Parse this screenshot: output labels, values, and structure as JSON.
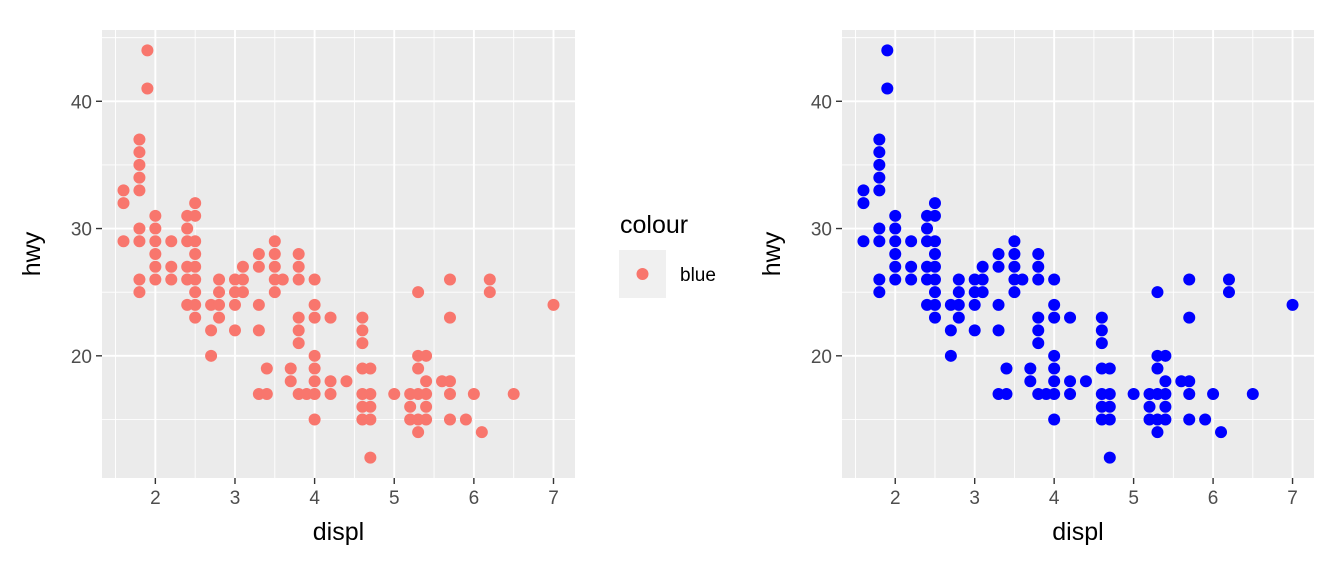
{
  "chart_data": [
    {
      "type": "scatter",
      "xlabel": "displ",
      "ylabel": "hwy",
      "xlim": [
        1.33,
        7.27
      ],
      "ylim": [
        10.4,
        45.6
      ],
      "x_ticks": [
        2,
        3,
        4,
        5,
        6,
        7
      ],
      "y_ticks": [
        20,
        30,
        40
      ],
      "grid": true,
      "point_color": "#F8766D",
      "legend": {
        "title": "colour",
        "entries": [
          "blue"
        ],
        "placement": "right"
      },
      "points": [
        [
          1.6,
          33
        ],
        [
          1.6,
          32
        ],
        [
          1.6,
          29
        ],
        [
          1.8,
          37
        ],
        [
          1.8,
          36
        ],
        [
          1.8,
          35
        ],
        [
          1.8,
          34
        ],
        [
          1.8,
          33
        ],
        [
          1.8,
          30
        ],
        [
          1.8,
          29
        ],
        [
          1.8,
          26
        ],
        [
          1.8,
          25
        ],
        [
          1.9,
          44
        ],
        [
          1.9,
          41
        ],
        [
          2.0,
          31
        ],
        [
          2.0,
          30
        ],
        [
          2.0,
          29
        ],
        [
          2.0,
          28
        ],
        [
          2.0,
          27
        ],
        [
          2.0,
          26
        ],
        [
          2.2,
          29
        ],
        [
          2.2,
          27
        ],
        [
          2.2,
          26
        ],
        [
          2.4,
          31
        ],
        [
          2.4,
          30
        ],
        [
          2.4,
          29
        ],
        [
          2.4,
          27
        ],
        [
          2.4,
          26
        ],
        [
          2.4,
          24
        ],
        [
          2.5,
          32
        ],
        [
          2.5,
          31
        ],
        [
          2.5,
          29
        ],
        [
          2.5,
          28
        ],
        [
          2.5,
          27
        ],
        [
          2.5,
          26
        ],
        [
          2.5,
          25
        ],
        [
          2.5,
          24
        ],
        [
          2.5,
          23
        ],
        [
          2.7,
          24
        ],
        [
          2.7,
          22
        ],
        [
          2.7,
          20
        ],
        [
          2.8,
          26
        ],
        [
          2.8,
          25
        ],
        [
          2.8,
          24
        ],
        [
          2.8,
          23
        ],
        [
          3.0,
          26
        ],
        [
          3.0,
          25
        ],
        [
          3.0,
          24
        ],
        [
          3.0,
          22
        ],
        [
          3.1,
          27
        ],
        [
          3.1,
          26
        ],
        [
          3.1,
          25
        ],
        [
          3.3,
          28
        ],
        [
          3.3,
          27
        ],
        [
          3.3,
          24
        ],
        [
          3.3,
          22
        ],
        [
          3.3,
          17
        ],
        [
          3.4,
          19
        ],
        [
          3.4,
          17
        ],
        [
          3.5,
          29
        ],
        [
          3.5,
          28
        ],
        [
          3.5,
          27
        ],
        [
          3.5,
          26
        ],
        [
          3.5,
          25
        ],
        [
          3.6,
          26
        ],
        [
          3.7,
          19
        ],
        [
          3.7,
          18
        ],
        [
          3.8,
          28
        ],
        [
          3.8,
          27
        ],
        [
          3.8,
          26
        ],
        [
          3.8,
          23
        ],
        [
          3.8,
          22
        ],
        [
          3.8,
          21
        ],
        [
          3.8,
          17
        ],
        [
          3.9,
          17
        ],
        [
          4.0,
          26
        ],
        [
          4.0,
          24
        ],
        [
          4.0,
          23
        ],
        [
          4.0,
          20
        ],
        [
          4.0,
          19
        ],
        [
          4.0,
          18
        ],
        [
          4.0,
          17
        ],
        [
          4.0,
          15
        ],
        [
          4.2,
          23
        ],
        [
          4.2,
          18
        ],
        [
          4.2,
          17
        ],
        [
          4.4,
          18
        ],
        [
          4.6,
          23
        ],
        [
          4.6,
          22
        ],
        [
          4.6,
          21
        ],
        [
          4.6,
          19
        ],
        [
          4.6,
          17
        ],
        [
          4.6,
          16
        ],
        [
          4.6,
          15
        ],
        [
          4.7,
          19
        ],
        [
          4.7,
          17
        ],
        [
          4.7,
          16
        ],
        [
          4.7,
          15
        ],
        [
          4.7,
          12
        ],
        [
          5.0,
          17
        ],
        [
          5.2,
          17
        ],
        [
          5.2,
          16
        ],
        [
          5.2,
          15
        ],
        [
          5.3,
          25
        ],
        [
          5.3,
          20
        ],
        [
          5.3,
          19
        ],
        [
          5.3,
          17
        ],
        [
          5.3,
          15
        ],
        [
          5.3,
          14
        ],
        [
          5.4,
          20
        ],
        [
          5.4,
          18
        ],
        [
          5.4,
          17
        ],
        [
          5.4,
          16
        ],
        [
          5.4,
          15
        ],
        [
          5.6,
          18
        ],
        [
          5.7,
          26
        ],
        [
          5.7,
          23
        ],
        [
          5.7,
          18
        ],
        [
          5.7,
          17
        ],
        [
          5.7,
          15
        ],
        [
          5.9,
          15
        ],
        [
          6.0,
          17
        ],
        [
          6.1,
          14
        ],
        [
          6.2,
          26
        ],
        [
          6.2,
          25
        ],
        [
          6.5,
          17
        ],
        [
          7.0,
          24
        ]
      ]
    },
    {
      "type": "scatter",
      "xlabel": "displ",
      "ylabel": "hwy",
      "xlim": [
        1.33,
        7.27
      ],
      "ylim": [
        10.4,
        45.6
      ],
      "x_ticks": [
        2,
        3,
        4,
        5,
        6,
        7
      ],
      "y_ticks": [
        20,
        30,
        40
      ],
      "grid": true,
      "point_color": "#0000FF",
      "points": [
        [
          1.6,
          33
        ],
        [
          1.6,
          32
        ],
        [
          1.6,
          29
        ],
        [
          1.8,
          37
        ],
        [
          1.8,
          36
        ],
        [
          1.8,
          35
        ],
        [
          1.8,
          34
        ],
        [
          1.8,
          33
        ],
        [
          1.8,
          30
        ],
        [
          1.8,
          29
        ],
        [
          1.8,
          26
        ],
        [
          1.8,
          25
        ],
        [
          1.9,
          44
        ],
        [
          1.9,
          41
        ],
        [
          2.0,
          31
        ],
        [
          2.0,
          30
        ],
        [
          2.0,
          29
        ],
        [
          2.0,
          28
        ],
        [
          2.0,
          27
        ],
        [
          2.0,
          26
        ],
        [
          2.2,
          29
        ],
        [
          2.2,
          27
        ],
        [
          2.2,
          26
        ],
        [
          2.4,
          31
        ],
        [
          2.4,
          30
        ],
        [
          2.4,
          29
        ],
        [
          2.4,
          27
        ],
        [
          2.4,
          26
        ],
        [
          2.4,
          24
        ],
        [
          2.5,
          32
        ],
        [
          2.5,
          31
        ],
        [
          2.5,
          29
        ],
        [
          2.5,
          28
        ],
        [
          2.5,
          27
        ],
        [
          2.5,
          26
        ],
        [
          2.5,
          25
        ],
        [
          2.5,
          24
        ],
        [
          2.5,
          23
        ],
        [
          2.7,
          24
        ],
        [
          2.7,
          22
        ],
        [
          2.7,
          20
        ],
        [
          2.8,
          26
        ],
        [
          2.8,
          25
        ],
        [
          2.8,
          24
        ],
        [
          2.8,
          23
        ],
        [
          3.0,
          26
        ],
        [
          3.0,
          25
        ],
        [
          3.0,
          24
        ],
        [
          3.0,
          22
        ],
        [
          3.1,
          27
        ],
        [
          3.1,
          26
        ],
        [
          3.1,
          25
        ],
        [
          3.3,
          28
        ],
        [
          3.3,
          27
        ],
        [
          3.3,
          24
        ],
        [
          3.3,
          22
        ],
        [
          3.3,
          17
        ],
        [
          3.4,
          19
        ],
        [
          3.4,
          17
        ],
        [
          3.5,
          29
        ],
        [
          3.5,
          28
        ],
        [
          3.5,
          27
        ],
        [
          3.5,
          26
        ],
        [
          3.5,
          25
        ],
        [
          3.6,
          26
        ],
        [
          3.7,
          19
        ],
        [
          3.7,
          18
        ],
        [
          3.8,
          28
        ],
        [
          3.8,
          27
        ],
        [
          3.8,
          26
        ],
        [
          3.8,
          23
        ],
        [
          3.8,
          22
        ],
        [
          3.8,
          21
        ],
        [
          3.8,
          17
        ],
        [
          3.9,
          17
        ],
        [
          4.0,
          26
        ],
        [
          4.0,
          24
        ],
        [
          4.0,
          23
        ],
        [
          4.0,
          20
        ],
        [
          4.0,
          19
        ],
        [
          4.0,
          18
        ],
        [
          4.0,
          17
        ],
        [
          4.0,
          15
        ],
        [
          4.2,
          23
        ],
        [
          4.2,
          18
        ],
        [
          4.2,
          17
        ],
        [
          4.4,
          18
        ],
        [
          4.6,
          23
        ],
        [
          4.6,
          22
        ],
        [
          4.6,
          21
        ],
        [
          4.6,
          19
        ],
        [
          4.6,
          17
        ],
        [
          4.6,
          16
        ],
        [
          4.6,
          15
        ],
        [
          4.7,
          19
        ],
        [
          4.7,
          17
        ],
        [
          4.7,
          16
        ],
        [
          4.7,
          15
        ],
        [
          4.7,
          12
        ],
        [
          5.0,
          17
        ],
        [
          5.2,
          17
        ],
        [
          5.2,
          16
        ],
        [
          5.2,
          15
        ],
        [
          5.3,
          25
        ],
        [
          5.3,
          20
        ],
        [
          5.3,
          19
        ],
        [
          5.3,
          17
        ],
        [
          5.3,
          15
        ],
        [
          5.3,
          14
        ],
        [
          5.4,
          20
        ],
        [
          5.4,
          18
        ],
        [
          5.4,
          17
        ],
        [
          5.4,
          16
        ],
        [
          5.4,
          15
        ],
        [
          5.6,
          18
        ],
        [
          5.7,
          26
        ],
        [
          5.7,
          23
        ],
        [
          5.7,
          18
        ],
        [
          5.7,
          17
        ],
        [
          5.7,
          15
        ],
        [
          5.9,
          15
        ],
        [
          6.0,
          17
        ],
        [
          6.1,
          14
        ],
        [
          6.2,
          26
        ],
        [
          6.2,
          25
        ],
        [
          6.5,
          17
        ],
        [
          7.0,
          24
        ]
      ]
    }
  ]
}
